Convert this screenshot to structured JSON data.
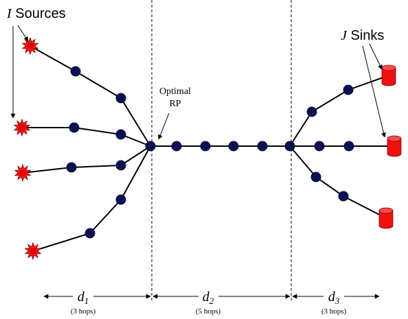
{
  "labels": {
    "sources_var": "I",
    "sources_word": " Sources",
    "sinks_var": "J",
    "sinks_word": " Sinks",
    "rp_line1": "Optimal",
    "rp_line2": "RP"
  },
  "segments": [
    {
      "var": "d",
      "sub": "1",
      "hops": "(3 hops)"
    },
    {
      "var": "d",
      "sub": "2",
      "hops": "(5 hops)"
    },
    {
      "var": "d",
      "sub": "3",
      "hops": "(3 hops)"
    }
  ],
  "colors": {
    "node": "#0b1150",
    "source": "#ff1a1a",
    "sink": "#ee1111",
    "edge": "#000000"
  },
  "icons": {
    "source": "starburst-source-icon",
    "sink": "cylinder-sink-icon"
  }
}
